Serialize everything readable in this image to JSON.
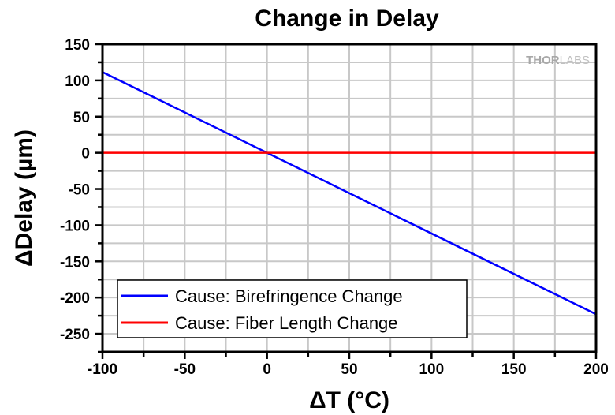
{
  "chart_data": {
    "type": "line",
    "title": "Change in Delay",
    "xlabel": "ΔT (°C)",
    "ylabel": "ΔDelay (µm)",
    "xlim": [
      -100,
      200
    ],
    "ylim": [
      -275,
      150
    ],
    "xticks": [
      -100,
      -50,
      0,
      50,
      100,
      150,
      200
    ],
    "yticks": [
      150,
      100,
      50,
      0,
      -50,
      -100,
      -150,
      -200,
      -250
    ],
    "minor_step": 25,
    "grid": true,
    "legend_position": "bottom-left",
    "series": [
      {
        "name": "Cause: Birefringence Change",
        "color": "#0000ff",
        "x": [
          -100,
          200
        ],
        "y": [
          111.5,
          -223
        ]
      },
      {
        "name": "Cause: Fiber Length Change",
        "color": "#ff0000",
        "x": [
          -100,
          200
        ],
        "y": [
          0,
          0
        ]
      }
    ],
    "watermark": {
      "bold": "THOR",
      "light": "LABS"
    }
  }
}
